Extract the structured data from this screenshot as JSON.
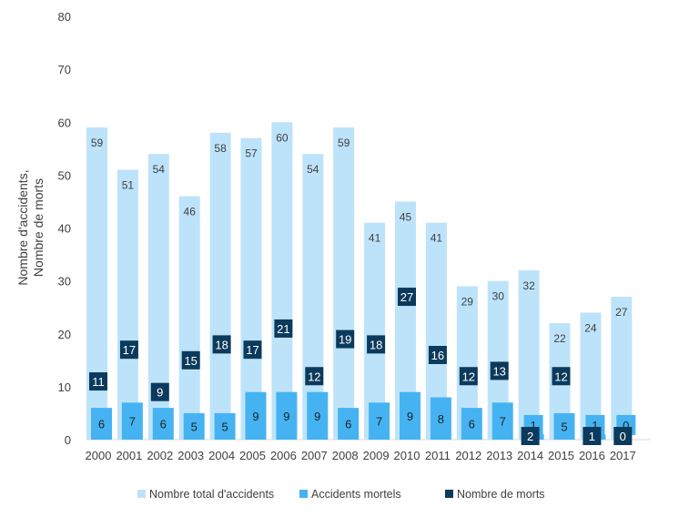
{
  "chart_data": {
    "type": "bar",
    "title": "",
    "xlabel": "",
    "ylabel": "Nombre d'accidents, Nombre de morts",
    "ylabel_lines": [
      "Nombre d'accidents,",
      "Nombre de morts"
    ],
    "ylim": [
      0,
      80
    ],
    "yticks": [
      0,
      10,
      20,
      30,
      40,
      50,
      60,
      70,
      80
    ],
    "grid": false,
    "legend_position": "bottom",
    "categories": [
      "2000",
      "2001",
      "2002",
      "2003",
      "2004",
      "2005",
      "2006",
      "2007",
      "2008",
      "2009",
      "2010",
      "2011",
      "2012",
      "2013",
      "2014",
      "2015",
      "2016",
      "2017"
    ],
    "series": [
      {
        "name": "Nombre total d'accidents",
        "color": "#BDE3FA",
        "values": [
          59,
          51,
          54,
          46,
          58,
          57,
          60,
          54,
          59,
          41,
          45,
          41,
          29,
          30,
          32,
          22,
          24,
          27
        ]
      },
      {
        "name": "Accidents mortels",
        "color": "#45B3F2",
        "values": [
          6,
          7,
          6,
          5,
          5,
          9,
          9,
          9,
          6,
          7,
          9,
          8,
          6,
          7,
          1,
          5,
          1,
          0
        ]
      },
      {
        "name": "Nombre de morts",
        "color": "#0B3A5C",
        "values": [
          11,
          17,
          9,
          15,
          18,
          17,
          21,
          12,
          19,
          18,
          27,
          16,
          12,
          13,
          2,
          12,
          1,
          0
        ]
      }
    ]
  }
}
